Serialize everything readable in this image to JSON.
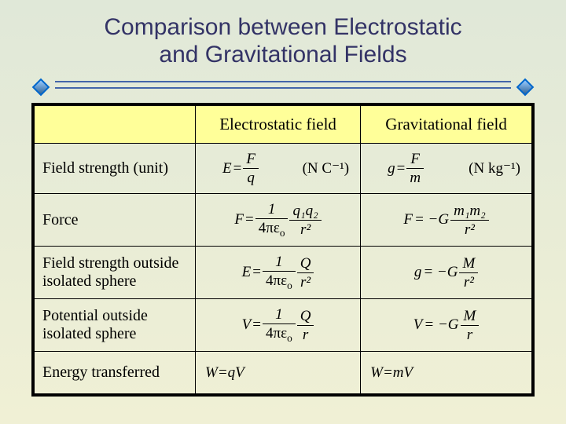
{
  "title_line1": "Comparison between Electrostatic",
  "title_line2": "and Gravitational Fields",
  "headers": {
    "col1": "Electrostatic field",
    "col2": "Gravitational field"
  },
  "rows": {
    "strength": {
      "label": "Field strength (unit)",
      "e_formula_lhs": "E",
      "e_num": "F",
      "e_den": "q",
      "e_unit": "(N C⁻¹)",
      "g_lhs": "g",
      "g_num": "F",
      "g_den": "m",
      "g_unit": "(N kg⁻¹)"
    },
    "force": {
      "label": "Force",
      "e_lhs": "F",
      "e_coef_num": "1",
      "e_coef_den": "4πε",
      "e_coef_sub": "o",
      "e_num": "q₁q₂",
      "e_den": "r²",
      "g_lhs": "F",
      "g_pre": " = −G",
      "g_num": "m₁m₂",
      "g_den": "r²"
    },
    "outside": {
      "label": "Field strength outside isolated sphere",
      "e_lhs": "E",
      "e_coef_num": "1",
      "e_coef_den": "4πε",
      "e_coef_sub": "o",
      "e_num": "Q",
      "e_den": "r²",
      "g_lhs": "g",
      "g_pre": " = −G",
      "g_num": "M",
      "g_den": "r²"
    },
    "potential": {
      "label": "Potential outside isolated sphere",
      "e_lhs": "V",
      "e_coef_num": "1",
      "e_coef_den": "4πε",
      "e_coef_sub": "o",
      "e_num": "Q",
      "e_den": "r",
      "g_lhs": "V",
      "g_pre": " = −G",
      "g_num": "M",
      "g_den": "r"
    },
    "energy": {
      "label": "Energy transferred",
      "e": "W=qV",
      "g": "W=mV"
    }
  },
  "colors": {
    "header_bg": "#ffff99",
    "title_color": "#333366",
    "divider_color": "#4466aa"
  }
}
